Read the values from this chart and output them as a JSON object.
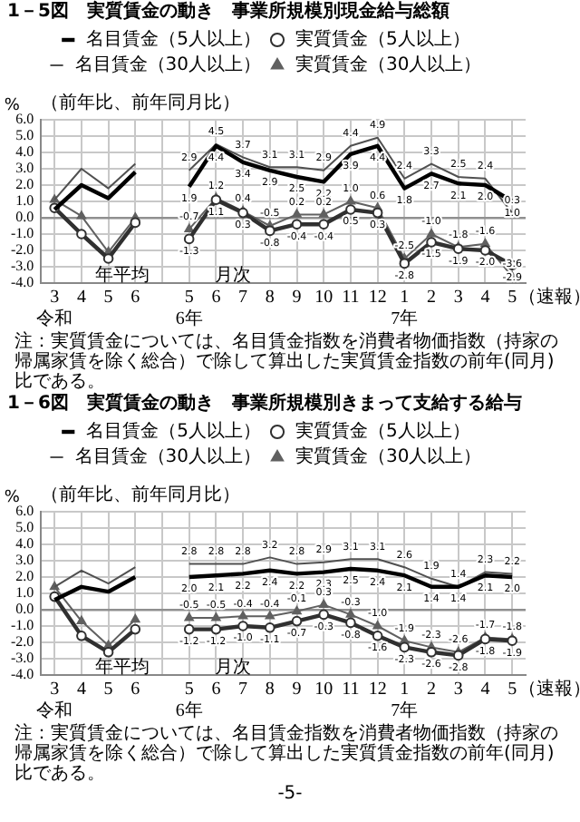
{
  "chart_data": [
    {
      "type": "line",
      "title": "1－5図　実質賃金の動き　事業所規模別現金給与総額",
      "subtitle": "（前年比、前年同月比）",
      "ylabel": "%",
      "categories": [
        "3\n令和",
        "4",
        "5",
        "6",
        null,
        "5\n6年",
        "6",
        "7",
        "8",
        "9",
        "10",
        "11",
        "12",
        "1\n7年",
        "2",
        "3",
        "4",
        "5"
      ],
      "ylim": [
        -4,
        6
      ],
      "yticks": [
        {
          "value": -4,
          "label": "-4.0"
        },
        {
          "value": -3,
          "label": "-3.0"
        },
        {
          "value": -2,
          "label": "-2.0"
        },
        {
          "value": -1,
          "label": "-1.0"
        },
        {
          "value": 0,
          "label": "0.0"
        },
        {
          "value": 1,
          "label": "1.0"
        },
        {
          "value": 2,
          "label": "2.0"
        },
        {
          "value": 3,
          "label": "3.0"
        },
        {
          "value": 4,
          "label": "4.0"
        },
        {
          "value": 5,
          "label": "5.0"
        },
        {
          "value": 6,
          "label": "6.0"
        }
      ],
      "grid": true,
      "legend": "top",
      "series": [
        {
          "name": "名目賃金（5人以上）",
          "color": "#000000",
          "marker": "none",
          "values": [
            0.5,
            2.0,
            1.2,
            2.8,
            null,
            1.9,
            4.4,
            3.4,
            2.9,
            2.5,
            2.2,
            3.9,
            4.4,
            1.8,
            2.7,
            2.1,
            2.0,
            1.0
          ],
          "value_labels": [
            null,
            null,
            null,
            null,
            null,
            "1.9",
            "4.4",
            "3.4",
            "2.9",
            "2.5",
            "2.2",
            "3.9",
            "4.4",
            "1.8",
            "2.7",
            "2.1",
            "2.0",
            "1.0"
          ]
        },
        {
          "name": "実質賃金（5人以上）",
          "color": "#303030",
          "marker": "circle",
          "values": [
            0.6,
            -1.0,
            -2.5,
            -0.3,
            null,
            -1.3,
            1.1,
            0.3,
            -0.8,
            -0.4,
            -0.4,
            0.5,
            0.3,
            -2.8,
            -1.5,
            -1.9,
            -2.0,
            -2.9
          ],
          "value_labels": [
            null,
            null,
            null,
            null,
            null,
            "-1.3",
            "1.1",
            "0.3",
            "-0.8",
            "-0.4",
            "-0.4",
            "0.5",
            "0.3",
            "-2.8",
            "-1.5",
            "-1.9",
            "-2.0",
            "-2.9"
          ]
        },
        {
          "name": "名目賃金（30人以上）",
          "color": "#505050",
          "marker": "none",
          "values": [
            1.1,
            3.0,
            1.8,
            3.3,
            null,
            2.9,
            4.5,
            3.7,
            3.1,
            3.1,
            2.9,
            4.4,
            4.9,
            2.4,
            3.3,
            2.5,
            2.4,
            0.3
          ],
          "value_labels": [
            null,
            null,
            null,
            null,
            null,
            "2.9",
            "4.5",
            "3.7",
            "3.1",
            "3.1",
            "2.9",
            "4.4",
            "4.9",
            "2.4",
            "3.3",
            "2.5",
            "2.4",
            "0.3"
          ]
        },
        {
          "name": "実質賃金（30人以上）",
          "color": "#606060",
          "marker": "triangle",
          "values": [
            1.1,
            0.1,
            -2.1,
            0.0,
            null,
            -0.7,
            1.2,
            0.4,
            -0.5,
            0.2,
            0.2,
            1.0,
            0.6,
            -2.5,
            -1.0,
            -1.8,
            -1.6,
            -3.6
          ],
          "value_labels": [
            null,
            null,
            null,
            null,
            null,
            "-0.7",
            "1.2",
            "0.4",
            "-0.5",
            "0.2",
            "0.2",
            "1.0",
            "0.6",
            "-2.5",
            "-1.0",
            "-1.8",
            "-1.6",
            "-3.6"
          ]
        }
      ],
      "annotations": [
        "年平均",
        "月次",
        "（速報）",
        "注：実質賃金については、名目賃金指数を消費者物価指数（持家の帰属家賃を除く総合）で除して算出した実質賃金指数の前年(同月)比である。"
      ]
    },
    {
      "type": "line",
      "title": "1－6図　実質賃金の動き　事業所規模別きまって支給する給与",
      "subtitle": "（前年比、前年同月比）",
      "ylabel": "%",
      "categories": [
        "3\n令和",
        "4",
        "5",
        "6",
        null,
        "5\n6年",
        "6",
        "7",
        "8",
        "9",
        "10",
        "11",
        "12",
        "1\n7年",
        "2",
        "3",
        "4",
        "5"
      ],
      "ylim": [
        -4,
        6
      ],
      "yticks": [
        {
          "value": -4,
          "label": "-4.0"
        },
        {
          "value": -3,
          "label": "-3.0"
        },
        {
          "value": -2,
          "label": "-2.0"
        },
        {
          "value": -1,
          "label": "-1.0"
        },
        {
          "value": 0,
          "label": "0.0"
        },
        {
          "value": 1,
          "label": "1.0"
        },
        {
          "value": 2,
          "label": "2.0"
        },
        {
          "value": 3,
          "label": "3.0"
        },
        {
          "value": 4,
          "label": "4.0"
        },
        {
          "value": 5,
          "label": "5.0"
        },
        {
          "value": 6,
          "label": "6.0"
        }
      ],
      "grid": true,
      "legend": "top",
      "series": [
        {
          "name": "名目賃金（5人以上）",
          "color": "#000000",
          "marker": "none",
          "values": [
            0.6,
            1.4,
            1.1,
            2.0,
            null,
            2.0,
            2.1,
            2.2,
            2.4,
            2.2,
            2.3,
            2.5,
            2.4,
            2.1,
            1.4,
            1.4,
            2.1,
            2.0
          ],
          "value_labels": [
            null,
            null,
            null,
            null,
            null,
            "2.0",
            "2.1",
            "2.2",
            "2.4",
            "2.2",
            "2.3",
            "2.5",
            "2.4",
            "2.1",
            "1.4",
            "1.4",
            "2.1",
            "2.0"
          ]
        },
        {
          "name": "実質賃金（5人以上）",
          "color": "#303030",
          "marker": "circle",
          "values": [
            0.8,
            -1.6,
            -2.6,
            -1.2,
            null,
            -1.2,
            -1.2,
            -1.0,
            -1.1,
            -0.7,
            -0.3,
            -0.8,
            -1.6,
            -2.3,
            -2.6,
            -2.8,
            -1.8,
            -1.9
          ],
          "value_labels": [
            null,
            null,
            null,
            null,
            null,
            "-1.2",
            "-1.2",
            "-1.0",
            "-1.1",
            "-0.7",
            "-0.3",
            "-0.8",
            "-1.6",
            "-2.3",
            "-2.6",
            "-2.8",
            "-1.8",
            "-1.9"
          ]
        },
        {
          "name": "名目賃金（30人以上）",
          "color": "#505050",
          "marker": "none",
          "values": [
            1.4,
            2.4,
            1.6,
            2.6,
            null,
            2.8,
            2.8,
            2.8,
            3.2,
            2.8,
            2.9,
            3.1,
            3.1,
            2.6,
            1.9,
            1.4,
            2.3,
            2.2
          ],
          "value_labels": [
            null,
            null,
            null,
            null,
            null,
            "2.8",
            "2.8",
            "2.8",
            "3.2",
            "2.8",
            "2.9",
            "3.1",
            "3.1",
            "2.6",
            "1.9",
            "1.4",
            "2.3",
            "2.2"
          ]
        },
        {
          "name": "実質賃金（30人以上）",
          "color": "#606060",
          "marker": "triangle",
          "values": [
            1.4,
            -0.7,
            -2.2,
            -0.6,
            null,
            -0.5,
            -0.5,
            -0.4,
            -0.4,
            -0.1,
            0.3,
            -0.3,
            -1.0,
            -1.9,
            -2.3,
            -2.6,
            -1.7,
            -1.8
          ],
          "value_labels": [
            null,
            null,
            null,
            null,
            null,
            "-0.5",
            "-0.5",
            "-0.4",
            "-0.4",
            "-0.1",
            "0.3",
            "-0.3",
            "-1.0",
            "-1.9",
            "-2.3",
            "-2.6",
            "-1.7",
            "-1.8"
          ]
        }
      ],
      "annotations": [
        "年平均",
        "月次",
        "（速報）",
        "注：実質賃金については、名目賃金指数を消費者物価指数（持家の帰属家賃を除く総合）で除して算出した実質賃金指数の前年(同月)比である。",
        "-5-"
      ]
    }
  ]
}
